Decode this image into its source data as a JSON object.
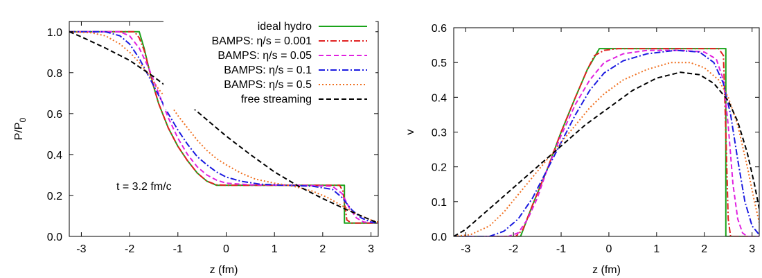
{
  "chart_data": [
    {
      "type": "line",
      "title": "",
      "xlabel": "z (fm)",
      "ylabel": "P/P",
      "ylabel_subscript": "0",
      "xlim": [
        -3.25,
        3.15
      ],
      "ylim": [
        0.0,
        1.05
      ],
      "xticks": [
        -3,
        -2,
        -1,
        0,
        1,
        2,
        3
      ],
      "yticks": [
        0.0,
        0.2,
        0.4,
        0.6,
        0.8,
        1.0
      ],
      "xtick_labels": [
        "-3",
        "-2",
        "-1",
        "0",
        "1",
        "2",
        "3"
      ],
      "ytick_labels": [
        "0.0",
        "0.2",
        "0.4",
        "0.6",
        "0.8",
        "1.0"
      ],
      "grid": false,
      "legend_position": "top-right",
      "annotation": "t = 3.2 fm/c",
      "series": [
        {
          "name": "ideal hydro",
          "color": "#1aa31a",
          "dash": "solid",
          "points": [
            [
              -3.25,
              1.0
            ],
            [
              -1.8,
              1.0
            ],
            [
              -1.7,
              0.92
            ],
            [
              -1.6,
              0.82
            ],
            [
              -1.5,
              0.73
            ],
            [
              -1.4,
              0.65
            ],
            [
              -1.2,
              0.53
            ],
            [
              -1.0,
              0.44
            ],
            [
              -0.8,
              0.37
            ],
            [
              -0.6,
              0.31
            ],
            [
              -0.4,
              0.27
            ],
            [
              -0.2,
              0.25
            ],
            [
              2.45,
              0.25
            ],
            [
              2.45,
              0.065
            ],
            [
              3.15,
              0.065
            ]
          ]
        },
        {
          "name": "BAMPS: η/s = 0.001",
          "color": "#e02020",
          "dash": "dashdot",
          "points": [
            [
              -3.25,
              1.0
            ],
            [
              -1.9,
              1.0
            ],
            [
              -1.8,
              0.97
            ],
            [
              -1.7,
              0.91
            ],
            [
              -1.6,
              0.82
            ],
            [
              -1.5,
              0.73
            ],
            [
              -1.4,
              0.65
            ],
            [
              -1.2,
              0.53
            ],
            [
              -1.0,
              0.44
            ],
            [
              -0.8,
              0.37
            ],
            [
              -0.6,
              0.31
            ],
            [
              -0.4,
              0.27
            ],
            [
              -0.2,
              0.252
            ],
            [
              0.0,
              0.25
            ],
            [
              2.35,
              0.25
            ],
            [
              2.42,
              0.22
            ],
            [
              2.5,
              0.08
            ],
            [
              2.6,
              0.065
            ],
            [
              3.15,
              0.065
            ]
          ]
        },
        {
          "name": "BAMPS: η/s = 0.05",
          "color": "#e020e0",
          "dash": "dashed",
          "points": [
            [
              -3.25,
              1.0
            ],
            [
              -2.2,
              1.0
            ],
            [
              -2.0,
              0.98
            ],
            [
              -1.8,
              0.92
            ],
            [
              -1.6,
              0.82
            ],
            [
              -1.4,
              0.7
            ],
            [
              -1.2,
              0.58
            ],
            [
              -1.0,
              0.48
            ],
            [
              -0.8,
              0.4
            ],
            [
              -0.6,
              0.34
            ],
            [
              -0.4,
              0.3
            ],
            [
              -0.2,
              0.275
            ],
            [
              0.0,
              0.26
            ],
            [
              0.5,
              0.252
            ],
            [
              1.5,
              0.25
            ],
            [
              2.2,
              0.245
            ],
            [
              2.4,
              0.21
            ],
            [
              2.55,
              0.14
            ],
            [
              2.7,
              0.09
            ],
            [
              2.85,
              0.07
            ],
            [
              3.15,
              0.065
            ]
          ]
        },
        {
          "name": "BAMPS: η/s = 0.1",
          "color": "#1a1ae0",
          "dash": "dashdot",
          "points": [
            [
              -3.25,
              1.0
            ],
            [
              -2.5,
              1.0
            ],
            [
              -2.2,
              0.98
            ],
            [
              -2.0,
              0.94
            ],
            [
              -1.8,
              0.87
            ],
            [
              -1.6,
              0.78
            ],
            [
              -1.4,
              0.69
            ],
            [
              -1.2,
              0.6
            ],
            [
              -1.0,
              0.52
            ],
            [
              -0.8,
              0.45
            ],
            [
              -0.6,
              0.39
            ],
            [
              -0.4,
              0.35
            ],
            [
              -0.2,
              0.315
            ],
            [
              0.0,
              0.29
            ],
            [
              0.3,
              0.27
            ],
            [
              0.7,
              0.255
            ],
            [
              1.2,
              0.25
            ],
            [
              1.8,
              0.245
            ],
            [
              2.2,
              0.23
            ],
            [
              2.4,
              0.19
            ],
            [
              2.6,
              0.13
            ],
            [
              2.8,
              0.09
            ],
            [
              3.0,
              0.07
            ],
            [
              3.15,
              0.065
            ]
          ]
        },
        {
          "name": "BAMPS: η/s = 0.5",
          "color": "#f07020",
          "dash": "dotted",
          "points": [
            [
              -3.25,
              1.0
            ],
            [
              -2.8,
              0.995
            ],
            [
              -2.5,
              0.98
            ],
            [
              -2.2,
              0.94
            ],
            [
              -2.0,
              0.9
            ],
            [
              -1.8,
              0.85
            ],
            [
              -1.6,
              0.79
            ],
            [
              -1.4,
              0.72
            ],
            [
              -1.2,
              0.66
            ],
            [
              -1.0,
              0.59
            ],
            [
              -0.8,
              0.53
            ],
            [
              -0.6,
              0.47
            ],
            [
              -0.4,
              0.42
            ],
            [
              -0.2,
              0.38
            ],
            [
              0.0,
              0.35
            ],
            [
              0.3,
              0.31
            ],
            [
              0.6,
              0.28
            ],
            [
              1.0,
              0.26
            ],
            [
              1.4,
              0.245
            ],
            [
              1.8,
              0.22
            ],
            [
              2.1,
              0.19
            ],
            [
              2.4,
              0.15
            ],
            [
              2.7,
              0.11
            ],
            [
              3.0,
              0.08
            ],
            [
              3.15,
              0.07
            ]
          ]
        },
        {
          "name": "free streaming",
          "color": "#000000",
          "dash": "dashed",
          "points": [
            [
              -3.25,
              1.0
            ],
            [
              -3.0,
              0.975
            ],
            [
              -2.5,
              0.92
            ],
            [
              -2.0,
              0.86
            ],
            [
              -1.5,
              0.78
            ],
            [
              -1.0,
              0.69
            ],
            [
              -0.5,
              0.59
            ],
            [
              0.0,
              0.49
            ],
            [
              0.5,
              0.4
            ],
            [
              1.0,
              0.315
            ],
            [
              1.5,
              0.245
            ],
            [
              2.0,
              0.185
            ],
            [
              2.5,
              0.13
            ],
            [
              3.0,
              0.08
            ],
            [
              3.15,
              0.065
            ]
          ]
        }
      ]
    },
    {
      "type": "line",
      "title": "",
      "xlabel": "z (fm)",
      "ylabel": "v",
      "xlim": [
        -3.25,
        3.15
      ],
      "ylim": [
        0.0,
        0.6
      ],
      "xticks": [
        -3,
        -2,
        -1,
        0,
        1,
        2,
        3
      ],
      "yticks": [
        0.0,
        0.1,
        0.2,
        0.3,
        0.4,
        0.5,
        0.6
      ],
      "xtick_labels": [
        "-3",
        "-2",
        "-1",
        "0",
        "1",
        "2",
        "3"
      ],
      "ytick_labels": [
        "0.0",
        "0.1",
        "0.2",
        "0.3",
        "0.4",
        "0.5",
        "0.6"
      ],
      "grid": false,
      "series": [
        {
          "color": "#1aa31a",
          "dash": "solid",
          "points": [
            [
              -3.25,
              0.0
            ],
            [
              -1.85,
              0.0
            ],
            [
              -1.6,
              0.09
            ],
            [
              -1.3,
              0.19
            ],
            [
              -1.0,
              0.3
            ],
            [
              -0.7,
              0.4
            ],
            [
              -0.45,
              0.48
            ],
            [
              -0.2,
              0.54
            ],
            [
              2.45,
              0.54
            ],
            [
              2.45,
              0.0
            ],
            [
              3.15,
              0.0
            ]
          ]
        },
        {
          "color": "#e02020",
          "dash": "dashdot",
          "points": [
            [
              -3.25,
              0.0
            ],
            [
              -1.95,
              0.0
            ],
            [
              -1.8,
              0.02
            ],
            [
              -1.6,
              0.09
            ],
            [
              -1.3,
              0.19
            ],
            [
              -1.0,
              0.3
            ],
            [
              -0.7,
              0.4
            ],
            [
              -0.45,
              0.48
            ],
            [
              -0.3,
              0.52
            ],
            [
              -0.1,
              0.535
            ],
            [
              0.2,
              0.54
            ],
            [
              2.3,
              0.54
            ],
            [
              2.4,
              0.52
            ],
            [
              2.45,
              0.3
            ],
            [
              2.5,
              0.05
            ],
            [
              2.55,
              0.0
            ],
            [
              3.15,
              0.0
            ]
          ]
        },
        {
          "color": "#e020e0",
          "dash": "dashed",
          "points": [
            [
              -3.25,
              0.0
            ],
            [
              -2.1,
              0.0
            ],
            [
              -1.9,
              0.01
            ],
            [
              -1.7,
              0.05
            ],
            [
              -1.5,
              0.11
            ],
            [
              -1.3,
              0.19
            ],
            [
              -1.0,
              0.29
            ],
            [
              -0.7,
              0.38
            ],
            [
              -0.4,
              0.45
            ],
            [
              -0.1,
              0.5
            ],
            [
              0.3,
              0.525
            ],
            [
              0.8,
              0.535
            ],
            [
              1.5,
              0.535
            ],
            [
              2.0,
              0.53
            ],
            [
              2.25,
              0.51
            ],
            [
              2.4,
              0.45
            ],
            [
              2.5,
              0.32
            ],
            [
              2.6,
              0.15
            ],
            [
              2.7,
              0.05
            ],
            [
              2.8,
              0.01
            ],
            [
              2.9,
              0.0
            ],
            [
              3.15,
              0.0
            ]
          ]
        },
        {
          "color": "#1a1ae0",
          "dash": "dashdot",
          "points": [
            [
              -3.25,
              0.0
            ],
            [
              -2.5,
              0.0
            ],
            [
              -2.2,
              0.015
            ],
            [
              -1.9,
              0.05
            ],
            [
              -1.6,
              0.11
            ],
            [
              -1.3,
              0.19
            ],
            [
              -1.0,
              0.27
            ],
            [
              -0.7,
              0.35
            ],
            [
              -0.4,
              0.42
            ],
            [
              -0.1,
              0.47
            ],
            [
              0.3,
              0.505
            ],
            [
              0.8,
              0.525
            ],
            [
              1.4,
              0.535
            ],
            [
              1.9,
              0.53
            ],
            [
              2.2,
              0.5
            ],
            [
              2.4,
              0.44
            ],
            [
              2.55,
              0.35
            ],
            [
              2.7,
              0.22
            ],
            [
              2.85,
              0.1
            ],
            [
              3.0,
              0.03
            ],
            [
              3.15,
              0.005
            ]
          ]
        },
        {
          "color": "#f07020",
          "dash": "dotted",
          "points": [
            [
              -3.25,
              0.0
            ],
            [
              -2.9,
              0.005
            ],
            [
              -2.5,
              0.03
            ],
            [
              -2.2,
              0.07
            ],
            [
              -1.9,
              0.12
            ],
            [
              -1.6,
              0.17
            ],
            [
              -1.3,
              0.22
            ],
            [
              -1.0,
              0.27
            ],
            [
              -0.7,
              0.32
            ],
            [
              -0.4,
              0.37
            ],
            [
              -0.1,
              0.41
            ],
            [
              0.3,
              0.45
            ],
            [
              0.8,
              0.48
            ],
            [
              1.3,
              0.5
            ],
            [
              1.7,
              0.5
            ],
            [
              2.0,
              0.485
            ],
            [
              2.3,
              0.45
            ],
            [
              2.5,
              0.4
            ],
            [
              2.7,
              0.32
            ],
            [
              2.9,
              0.2
            ],
            [
              3.05,
              0.1
            ],
            [
              3.15,
              0.04
            ]
          ]
        },
        {
          "color": "#000000",
          "dash": "dashed",
          "points": [
            [
              -3.25,
              0.0
            ],
            [
              -3.0,
              0.02
            ],
            [
              -2.5,
              0.08
            ],
            [
              -2.0,
              0.14
            ],
            [
              -1.5,
              0.2
            ],
            [
              -1.0,
              0.26
            ],
            [
              -0.5,
              0.32
            ],
            [
              0.0,
              0.37
            ],
            [
              0.5,
              0.42
            ],
            [
              1.0,
              0.455
            ],
            [
              1.5,
              0.472
            ],
            [
              1.9,
              0.465
            ],
            [
              2.2,
              0.44
            ],
            [
              2.5,
              0.39
            ],
            [
              2.7,
              0.33
            ],
            [
              2.9,
              0.24
            ],
            [
              3.05,
              0.15
            ],
            [
              3.15,
              0.08
            ]
          ]
        }
      ]
    }
  ]
}
